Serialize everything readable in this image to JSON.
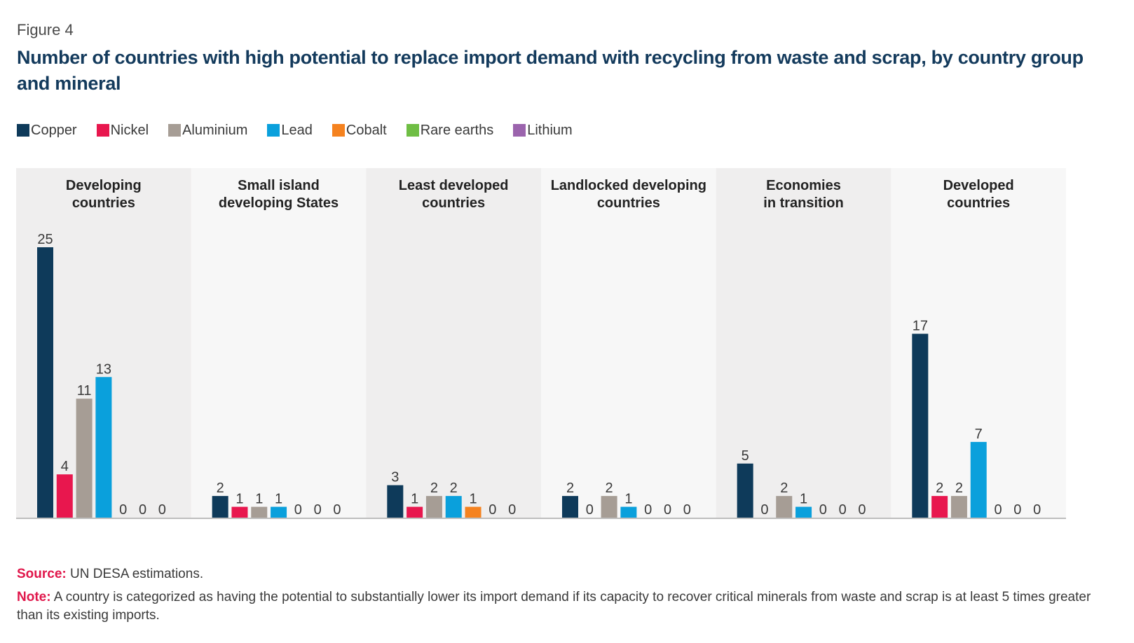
{
  "figure_label": "Figure 4",
  "title": "Number of countries with high potential to replace import demand with recycling from waste and scrap, by country group and mineral",
  "source_key": "Source:",
  "source_text": " UN DESA estimations.",
  "note_key": "Note:",
  "note_text": " A country is categorized as having the potential to substantially lower its import demand if its capacity to recover critical minerals from waste and scrap is at least 5 times greater than its existing imports.",
  "chart_data": {
    "type": "bar",
    "title": "Number of countries with high potential to replace import demand with recycling from waste and scrap, by country group and mineral",
    "xlabel": "",
    "ylabel": "",
    "ylim": [
      0,
      25
    ],
    "grid": false,
    "legend_position": "top-left",
    "categories": [
      "Developing\ncountries",
      "Small island\ndeveloping States",
      "Least developed\ncountries",
      "Landlocked developing\ncountries",
      "Economies\nin transition",
      "Developed\ncountries"
    ],
    "series": [
      {
        "name": "Copper",
        "color": "#0e3a5a",
        "values": [
          25,
          2,
          3,
          2,
          5,
          17
        ]
      },
      {
        "name": "Nickel",
        "color": "#e8174e",
        "values": [
          4,
          1,
          1,
          0,
          0,
          2
        ]
      },
      {
        "name": "Aluminium",
        "color": "#a69d95",
        "values": [
          11,
          1,
          2,
          2,
          2,
          2
        ]
      },
      {
        "name": "Lead",
        "color": "#0aa0dc",
        "values": [
          13,
          1,
          2,
          1,
          1,
          7
        ]
      },
      {
        "name": "Cobalt",
        "color": "#f5821f",
        "values": [
          0,
          0,
          1,
          0,
          0,
          0
        ]
      },
      {
        "name": "Rare earths",
        "color": "#6fbe44",
        "values": [
          0,
          0,
          0,
          0,
          0,
          0
        ]
      },
      {
        "name": "Lithium",
        "color": "#9b64ad",
        "values": [
          0,
          0,
          0,
          0,
          0,
          0
        ]
      }
    ]
  }
}
